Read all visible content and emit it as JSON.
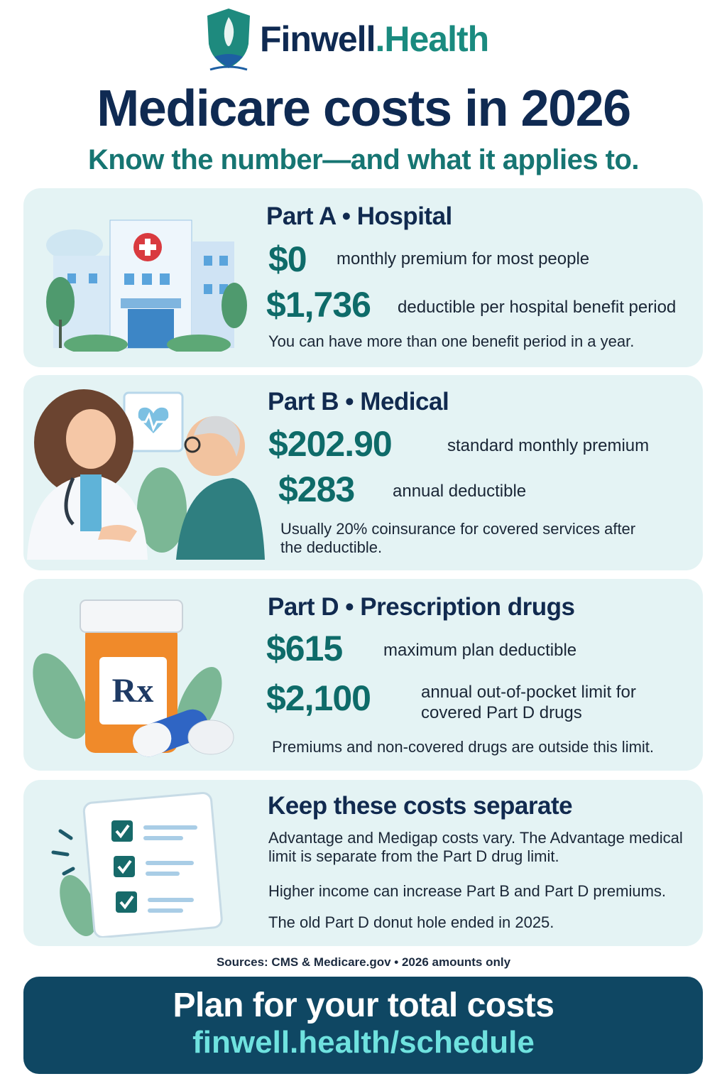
{
  "header": {
    "brand_name": "Finwell",
    "brand_suffix": ".Health",
    "title": "Medicare costs in 2026",
    "subtitle": "Know the number—and what it applies to."
  },
  "sections": [
    {
      "heading": "Part A • Hospital",
      "items": [
        {
          "amount": "$0",
          "text": "monthly premium for most people"
        },
        {
          "amount": "$1,736",
          "text": "deductible per hospital benefit period"
        }
      ],
      "note": "You can have more than one benefit period in a year."
    },
    {
      "heading": "Part B • Medical",
      "items": [
        {
          "amount": "$202.90",
          "text": "standard monthly premium"
        },
        {
          "amount": "$283",
          "text": "annual deductible"
        }
      ],
      "note": "Usually 20% coinsurance for covered services after the deductible."
    },
    {
      "heading": "Part D • Prescription drugs",
      "items": [
        {
          "amount": "$615",
          "text": "maximum plan deductible"
        },
        {
          "amount": "$2,100",
          "text": "annual out-of-pocket limit for covered Part D drugs"
        }
      ],
      "note": "Premiums and non-covered drugs are outside this limit."
    }
  ],
  "separate": {
    "heading": "Keep these costs separate",
    "notes": [
      "Advantage and Medigap costs vary. The Advantage medical limit is separate from the Part D drug limit.",
      "Higher income can increase Part B and Part D premiums.",
      "The old Part D donut hole ended in 2025."
    ]
  },
  "sources": "Sources: CMS & Medicare.gov • 2026 amounts only",
  "cta": {
    "title": "Plan for your total costs",
    "link": "finwell.health/schedule"
  }
}
